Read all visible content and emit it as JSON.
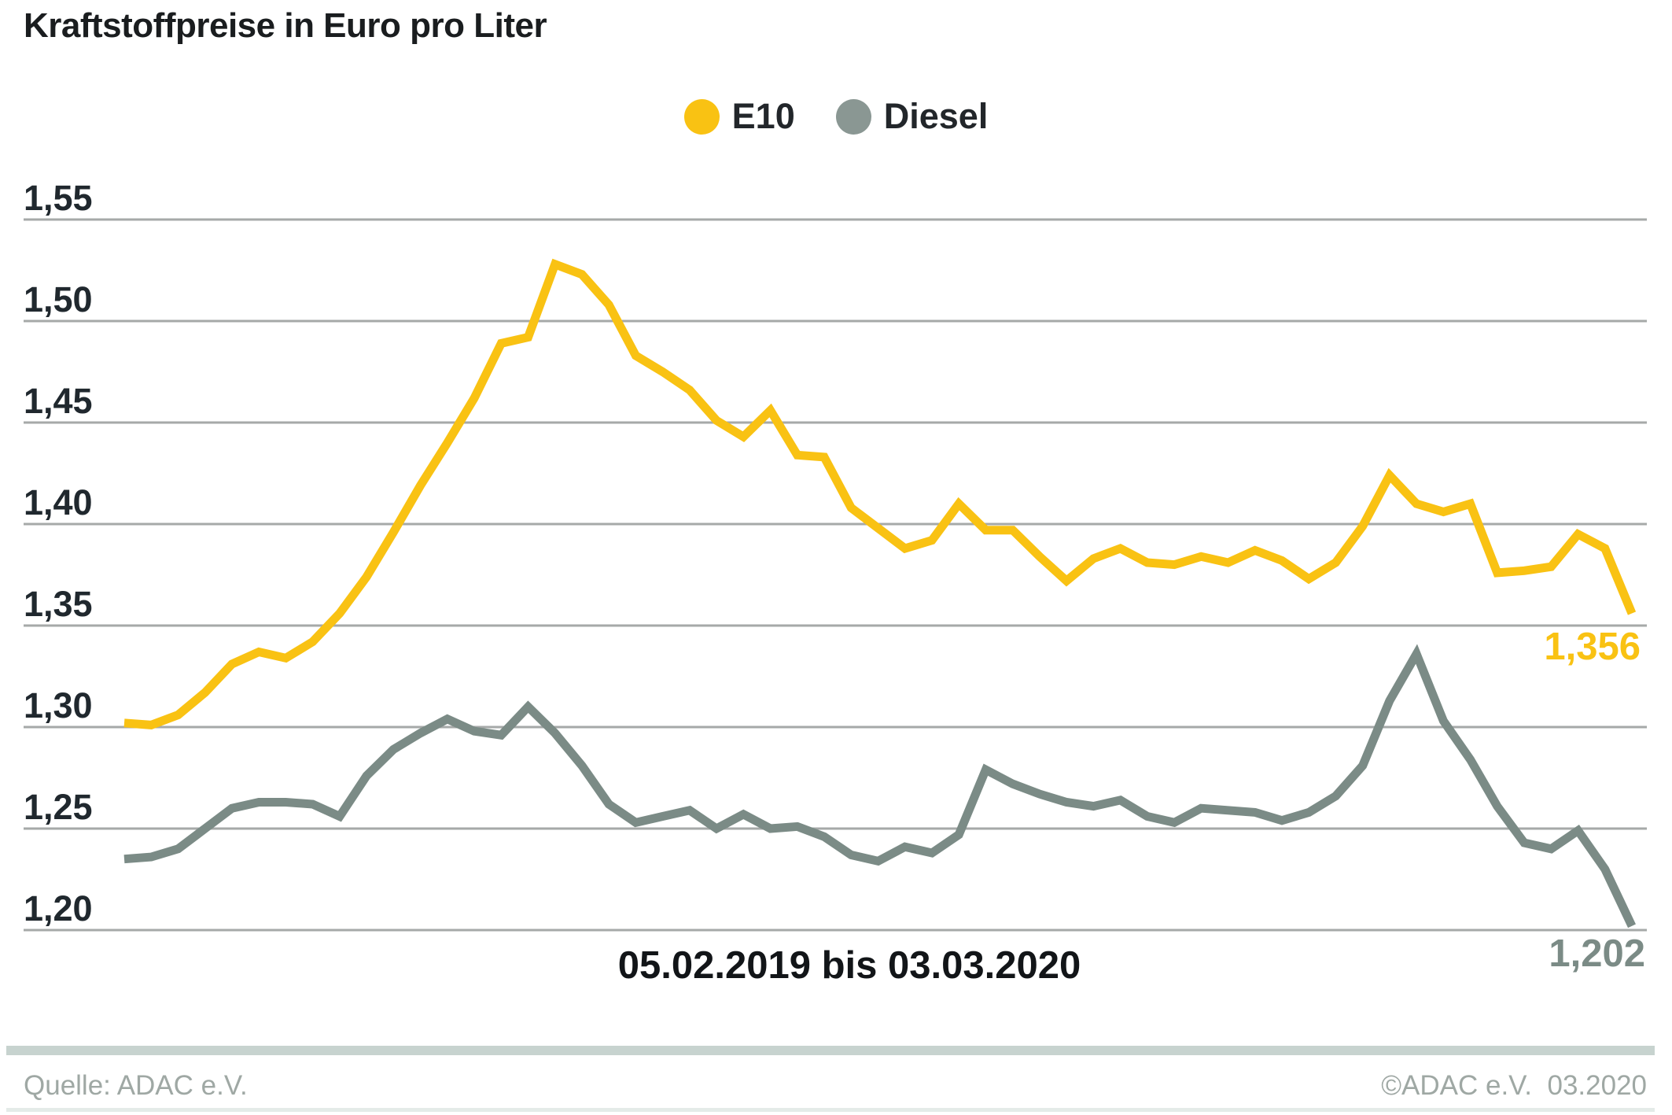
{
  "page": {
    "title": "Kraftstoffpreise in Euro pro Liter"
  },
  "legend": {
    "items": [
      {
        "label": "E10",
        "color": "#f9c213"
      },
      {
        "label": "Diesel",
        "color": "#8a9793"
      }
    ]
  },
  "chart_data": {
    "type": "line",
    "title": "Kraftstoffpreise in Euro pro Liter",
    "x_label": "05.02.2019 bis 03.03.2020",
    "x_range": [
      "05.02.2019",
      "03.03.2020"
    ],
    "interval": "weekly",
    "ylim": [
      1.2,
      1.55
    ],
    "grid": true,
    "grid_color": "#a6a9a8",
    "legend_position": "top-center",
    "y_ticks": [
      {
        "value": 1.55,
        "label": "1,55"
      },
      {
        "value": 1.5,
        "label": "1,50"
      },
      {
        "value": 1.45,
        "label": "1,45"
      },
      {
        "value": 1.4,
        "label": "1,40"
      },
      {
        "value": 1.35,
        "label": "1,35"
      },
      {
        "value": 1.3,
        "label": "1,30"
      },
      {
        "value": 1.25,
        "label": "1,25"
      },
      {
        "value": 1.2,
        "label": "1,20"
      }
    ],
    "series": [
      {
        "name": "E10",
        "color": "#f9c213",
        "end_label": "1,356",
        "end_value": 1.356,
        "values": [
          1.302,
          1.301,
          1.306,
          1.317,
          1.331,
          1.337,
          1.334,
          1.342,
          1.356,
          1.374,
          1.396,
          1.419,
          1.44,
          1.462,
          1.489,
          1.492,
          1.528,
          1.523,
          1.508,
          1.483,
          1.475,
          1.466,
          1.451,
          1.443,
          1.456,
          1.434,
          1.433,
          1.408,
          1.398,
          1.388,
          1.392,
          1.41,
          1.397,
          1.397,
          1.384,
          1.372,
          1.383,
          1.388,
          1.381,
          1.38,
          1.384,
          1.381,
          1.387,
          1.382,
          1.373,
          1.381,
          1.399,
          1.424,
          1.41,
          1.406,
          1.41,
          1.376,
          1.377,
          1.379,
          1.395,
          1.388,
          1.356
        ]
      },
      {
        "name": "Diesel",
        "color": "#7b8b86",
        "end_label": "1,202",
        "end_value": 1.202,
        "values": [
          1.235,
          1.236,
          1.24,
          1.25,
          1.26,
          1.263,
          1.263,
          1.262,
          1.256,
          1.276,
          1.289,
          1.297,
          1.304,
          1.298,
          1.296,
          1.31,
          1.297,
          1.281,
          1.262,
          1.253,
          1.256,
          1.259,
          1.25,
          1.257,
          1.25,
          1.251,
          1.246,
          1.237,
          1.234,
          1.241,
          1.238,
          1.247,
          1.279,
          1.272,
          1.267,
          1.263,
          1.261,
          1.264,
          1.256,
          1.253,
          1.26,
          1.259,
          1.258,
          1.254,
          1.258,
          1.266,
          1.281,
          1.313,
          1.336,
          1.303,
          1.284,
          1.261,
          1.243,
          1.24,
          1.249,
          1.23,
          1.202
        ]
      }
    ]
  },
  "footer": {
    "source": "Quelle: ADAC e.V.",
    "copyright": "©ADAC e.V.  03.2020"
  }
}
